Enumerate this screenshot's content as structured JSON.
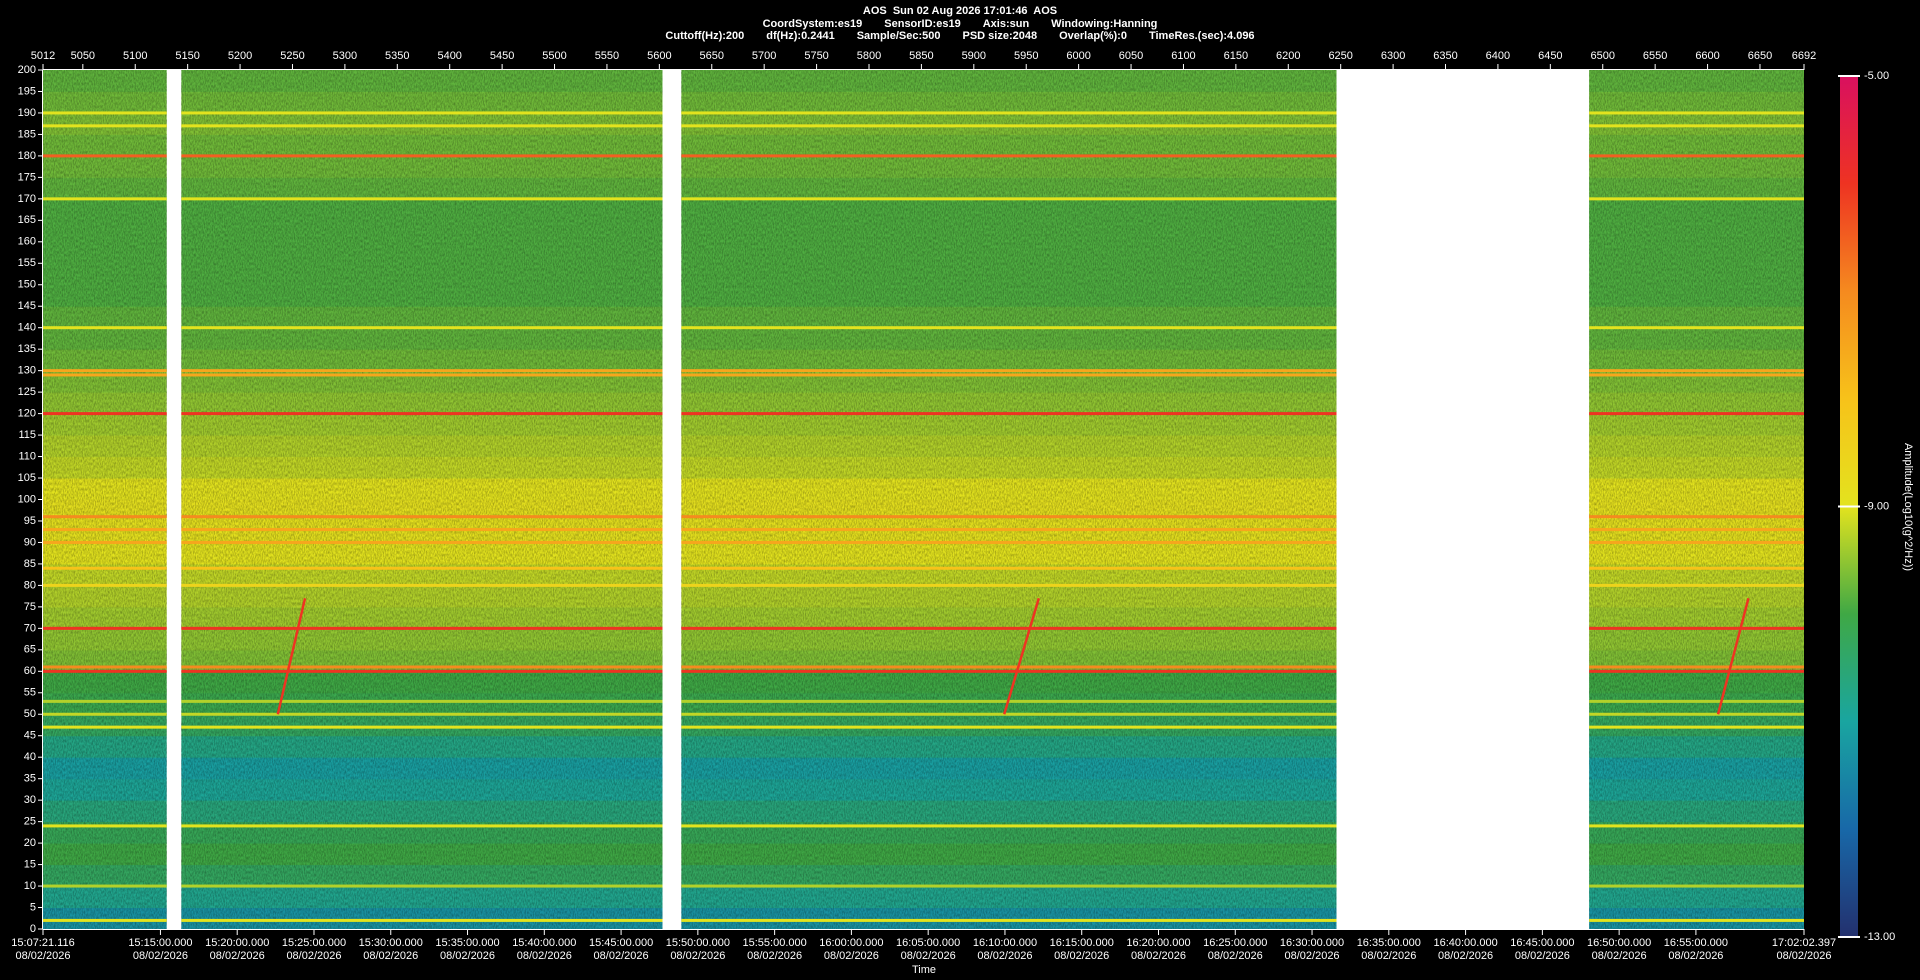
{
  "chart_data": {
    "type": "spectrogram",
    "title": "AOS  Sun 02 Aug 2026 17:01:46  AOS",
    "info_lines": [
      [
        "CoordSystem:es19",
        "SensorID:es19",
        "Axis:sun",
        "Windowing:Hanning"
      ],
      [
        "Cuttoff(Hz):200",
        "df(Hz):0.2441",
        "Sample/Sec:500",
        "PSD size:2048",
        "Overlap(%):0",
        "TimeRes.(sec):4.096"
      ]
    ],
    "xlabel": "Time",
    "xlim": [
      5012,
      6692
    ],
    "xticks": [
      5012,
      5050,
      5100,
      5150,
      5200,
      5250,
      5300,
      5350,
      5400,
      5450,
      5500,
      5550,
      5600,
      5650,
      5700,
      5750,
      5800,
      5850,
      5900,
      5950,
      6000,
      6050,
      6100,
      6150,
      6200,
      6250,
      6300,
      6350,
      6400,
      6450,
      6500,
      6550,
      6600,
      6650,
      6692
    ],
    "x2ticks": [
      {
        "value": 5012,
        "label": "15:07:21.116"
      },
      {
        "value": 5124.03,
        "label": "15:15:00.000"
      },
      {
        "value": 5197.27,
        "label": "15:20:00.000"
      },
      {
        "value": 5270.52,
        "label": "15:25:00.000"
      },
      {
        "value": 5343.76,
        "label": "15:30:00.000"
      },
      {
        "value": 5417.0,
        "label": "15:35:00.000"
      },
      {
        "value": 5490.25,
        "label": "15:40:00.000"
      },
      {
        "value": 5563.49,
        "label": "15:45:00.000"
      },
      {
        "value": 5636.73,
        "label": "15:50:00.000"
      },
      {
        "value": 5709.97,
        "label": "15:55:00.000"
      },
      {
        "value": 5783.21,
        "label": "16:00:00.000"
      },
      {
        "value": 5856.46,
        "label": "16:05:00.000"
      },
      {
        "value": 5929.7,
        "label": "16:10:00.000"
      },
      {
        "value": 6002.94,
        "label": "16:15:00.000"
      },
      {
        "value": 6076.18,
        "label": "16:20:00.000"
      },
      {
        "value": 6149.43,
        "label": "16:25:00.000"
      },
      {
        "value": 6222.67,
        "label": "16:30:00.000"
      },
      {
        "value": 6295.91,
        "label": "16:35:00.000"
      },
      {
        "value": 6369.15,
        "label": "16:40:00.000"
      },
      {
        "value": 6442.4,
        "label": "16:45:00.000"
      },
      {
        "value": 6515.64,
        "label": "16:50:00.000"
      },
      {
        "value": 6588.88,
        "label": "16:55:00.000"
      },
      {
        "value": 6692,
        "label": "17:02:02.397"
      }
    ],
    "x2tick_date": "08/02/2026",
    "ylim": [
      0,
      200
    ],
    "yticks": [
      0,
      5,
      10,
      15,
      20,
      25,
      30,
      35,
      40,
      45,
      50,
      55,
      60,
      65,
      70,
      75,
      80,
      85,
      90,
      95,
      100,
      105,
      110,
      115,
      120,
      125,
      130,
      135,
      140,
      145,
      150,
      155,
      160,
      165,
      170,
      175,
      180,
      185,
      190,
      195,
      200
    ],
    "segments": [
      [
        5012,
        5130
      ],
      [
        5144,
        5603
      ],
      [
        5621,
        6246
      ],
      [
        6487,
        6692
      ]
    ],
    "freq_bins": [
      0,
      5,
      10,
      15,
      20,
      25,
      30,
      35,
      40,
      45,
      50,
      55,
      60,
      65,
      70,
      75,
      80,
      85,
      90,
      95,
      100,
      105,
      110,
      115,
      120,
      125,
      130,
      135,
      140,
      145,
      150,
      155,
      160,
      165,
      170,
      175,
      180,
      185,
      190,
      195,
      200
    ],
    "amplitude": [
      -11.3,
      -10.8,
      -10.3,
      -10.0,
      -10.2,
      -10.6,
      -10.9,
      -11.1,
      -10.7,
      -10.3,
      -10.1,
      -10.0,
      -9.6,
      -9.5,
      -9.4,
      -9.3,
      -9.2,
      -9.0,
      -8.9,
      -8.9,
      -9.0,
      -9.2,
      -9.3,
      -9.4,
      -9.5,
      -9.6,
      -9.7,
      -9.8,
      -9.8,
      -9.9,
      -9.9,
      -9.9,
      -9.9,
      -9.9,
      -9.8,
      -9.7,
      -9.7,
      -9.6,
      -9.7,
      -9.8
    ],
    "tones": [
      {
        "freq": 2,
        "amplitude": -9
      },
      {
        "freq": 10,
        "amplitude": -9.3
      },
      {
        "freq": 24,
        "amplitude": -9
      },
      {
        "freq": 47,
        "amplitude": -9
      },
      {
        "freq": 50,
        "amplitude": -9.2
      },
      {
        "freq": 53,
        "amplitude": -9.3
      },
      {
        "freq": 60,
        "amplitude": -6
      },
      {
        "freq": 61,
        "amplitude": -7
      },
      {
        "freq": 70,
        "amplitude": -6
      },
      {
        "freq": 80,
        "amplitude": -8.5
      },
      {
        "freq": 84,
        "amplitude": -8
      },
      {
        "freq": 90,
        "amplitude": -7.5
      },
      {
        "freq": 93,
        "amplitude": -7.5
      },
      {
        "freq": 96,
        "amplitude": -7
      },
      {
        "freq": 120,
        "amplitude": -6
      },
      {
        "freq": 129,
        "amplitude": -7.5
      },
      {
        "freq": 130,
        "amplitude": -7.5
      },
      {
        "freq": 140,
        "amplitude": -9
      },
      {
        "freq": 170,
        "amplitude": -9
      },
      {
        "freq": 180,
        "amplitude": -6.5
      },
      {
        "freq": 187,
        "amplitude": -9
      },
      {
        "freq": 190,
        "amplitude": -9
      }
    ],
    "sweeps": [
      {
        "x": [
          5236,
          5262
        ],
        "y": [
          50,
          77
        ],
        "amplitude": -6
      },
      {
        "x": [
          5929,
          5962
        ],
        "y": [
          50,
          77
        ],
        "amplitude": -6
      },
      {
        "x": [
          6610,
          6639
        ],
        "y": [
          50,
          77
        ],
        "amplitude": -6
      }
    ],
    "colorbar_label": "Amplitude(Log10(g^2/Hz))",
    "clim": [
      -13,
      -5
    ],
    "cticks": [
      {
        "value": -13,
        "label": "-13.00"
      },
      {
        "value": -9,
        "label": "-9.00"
      },
      {
        "value": -5,
        "label": "-5.00"
      }
    ],
    "colorscale": [
      "#23306e",
      "#1868a8",
      "#19a5a0",
      "#3fa845",
      "#e3e31e",
      "#f7c21a",
      "#f58a1f",
      "#ee3322",
      "#d9105f"
    ]
  }
}
